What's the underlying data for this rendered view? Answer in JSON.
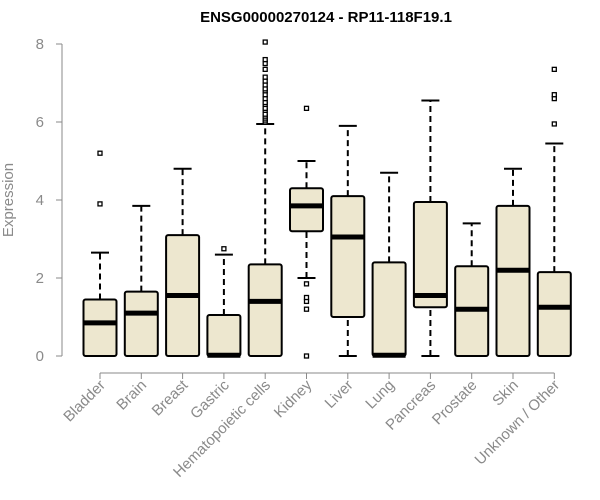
{
  "chart_data": {
    "type": "boxplot",
    "title": "ENSG00000270124 - RP11-118F19.1",
    "xlabel": "",
    "ylabel": "Expression",
    "ylim": [
      0,
      8
    ],
    "yticks": [
      0,
      2,
      4,
      6,
      8
    ],
    "fill_color": "#ede7cf",
    "axis_color": "#8a8a8a",
    "categories": [
      "Bladder",
      "Brain",
      "Breast",
      "Gastric",
      "Hematopoietic cells",
      "Kidney",
      "Liver",
      "Lung",
      "Pancreas",
      "Prostate",
      "Skin",
      "Unknown / Other"
    ],
    "boxes": [
      {
        "name": "Bladder",
        "min": 0,
        "q1": 0,
        "median": 0.85,
        "q3": 1.45,
        "max": 2.65,
        "outliers": [
          3.9,
          5.2
        ]
      },
      {
        "name": "Brain",
        "min": 0,
        "q1": 0,
        "median": 1.1,
        "q3": 1.65,
        "max": 3.85,
        "outliers": []
      },
      {
        "name": "Breast",
        "min": 0,
        "q1": 0,
        "median": 1.55,
        "q3": 3.1,
        "max": 4.8,
        "outliers": []
      },
      {
        "name": "Gastric",
        "min": 0,
        "q1": 0,
        "median": 0.02,
        "q3": 1.05,
        "max": 2.6,
        "outliers": [
          2.75
        ]
      },
      {
        "name": "Hematopoietic cells",
        "min": 0,
        "q1": 0,
        "median": 1.4,
        "q3": 2.35,
        "max": 5.95,
        "outliers": [
          6.0,
          6.05,
          6.1,
          6.15,
          6.2,
          6.3,
          6.35,
          6.45,
          6.5,
          6.6,
          6.7,
          6.8,
          6.85,
          6.95,
          7.05,
          7.15,
          7.35,
          7.5,
          7.6,
          8.05
        ]
      },
      {
        "name": "Kidney",
        "min": 2.0,
        "q1": 3.2,
        "median": 3.85,
        "q3": 4.3,
        "max": 5.0,
        "outliers": [
          0,
          1.2,
          1.4,
          1.5,
          1.85,
          6.35
        ]
      },
      {
        "name": "Liver",
        "min": 0,
        "q1": 1.0,
        "median": 3.05,
        "q3": 4.1,
        "max": 5.9,
        "outliers": []
      },
      {
        "name": "Lung",
        "min": 0,
        "q1": 0,
        "median": 0.02,
        "q3": 2.4,
        "max": 4.7,
        "outliers": []
      },
      {
        "name": "Pancreas",
        "min": 0,
        "q1": 1.25,
        "median": 1.55,
        "q3": 3.95,
        "max": 6.55,
        "outliers": []
      },
      {
        "name": "Prostate",
        "min": 0,
        "q1": 0,
        "median": 1.2,
        "q3": 2.3,
        "max": 3.4,
        "outliers": []
      },
      {
        "name": "Skin",
        "min": 0,
        "q1": 0,
        "median": 2.2,
        "q3": 3.85,
        "max": 4.8,
        "outliers": []
      },
      {
        "name": "Unknown / Other",
        "min": 0,
        "q1": 0,
        "median": 1.25,
        "q3": 2.15,
        "max": 5.45,
        "outliers": [
          5.95,
          6.6,
          6.7,
          7.35
        ]
      }
    ]
  }
}
